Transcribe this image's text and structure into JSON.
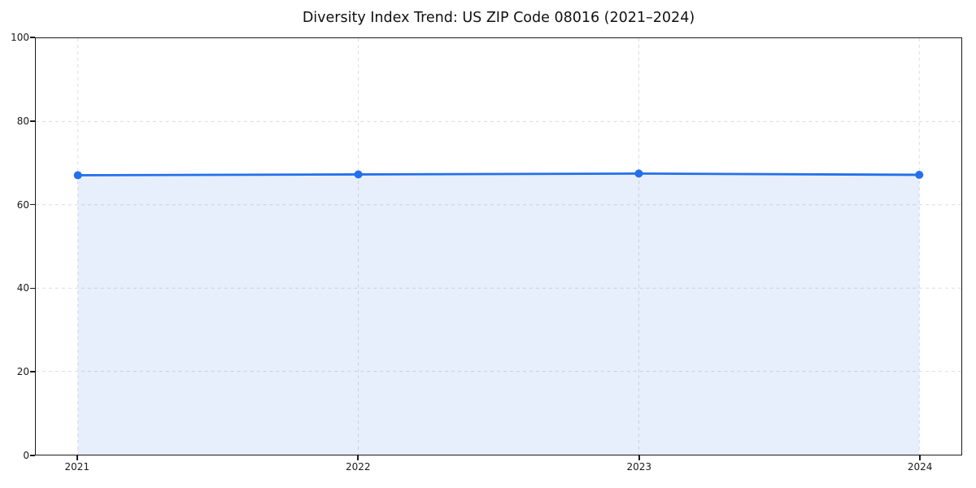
{
  "chart_data": {
    "type": "area",
    "title": "Diversity Index Trend: US ZIP Code 08016 (2021–2024)",
    "series_name": "Diversity Index",
    "x": [
      2021,
      2022,
      2023,
      2024
    ],
    "values": [
      67.1,
      67.3,
      67.5,
      67.2
    ],
    "xlabel": "",
    "ylabel": "",
    "xlim": [
      2020.85,
      2024.15
    ],
    "ylim": [
      0,
      100
    ],
    "xticks": [
      2021,
      2022,
      2023,
      2024
    ],
    "yticks": [
      0,
      20,
      40,
      60,
      80,
      100
    ],
    "grid": "dashed-both-axes",
    "legend": "none",
    "colors": {
      "line": "#2470ea",
      "fill": "#2470ea",
      "fill_opacity": 0.11,
      "grid": "#dcdcdc",
      "spine": "#1a1a1a",
      "tick_text": "#1a1a1a",
      "title_text": "#111111",
      "background": "#ffffff"
    }
  }
}
